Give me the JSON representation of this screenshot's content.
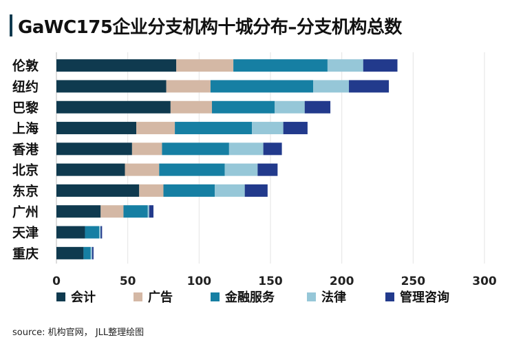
{
  "title": "GaWC175企业分支机构十城分布–分支机构总数",
  "source": "source: 机构官网， JLL整理绘图",
  "chart_data": {
    "type": "bar",
    "orientation": "horizontal",
    "stacked": true,
    "categories": [
      "伦敦",
      "纽约",
      "巴黎",
      "上海",
      "香港",
      "北京",
      "东京",
      "广州",
      "天津",
      "重庆"
    ],
    "series": [
      {
        "name": "会计",
        "color": "#0f3a4f",
        "values": [
          84,
          77,
          80,
          56,
          53,
          48,
          58,
          31,
          20,
          19
        ]
      },
      {
        "name": "广告",
        "color": "#d4b8a5",
        "values": [
          40,
          31,
          29,
          27,
          21,
          24,
          17,
          16,
          0,
          0
        ]
      },
      {
        "name": "金融服务",
        "color": "#167fa3",
        "values": [
          66,
          72,
          44,
          54,
          47,
          46,
          36,
          17,
          10,
          5
        ]
      },
      {
        "name": "法律",
        "color": "#96c7d8",
        "values": [
          25,
          25,
          21,
          22,
          24,
          23,
          21,
          1,
          1,
          1
        ]
      },
      {
        "name": "管理咨询",
        "color": "#223a8c",
        "values": [
          24,
          28,
          18,
          17,
          13,
          14,
          16,
          3,
          1,
          1
        ]
      }
    ],
    "xlim": [
      0,
      300
    ],
    "xticks": [
      "0",
      "50",
      "100",
      "150",
      "200",
      "250",
      "300"
    ],
    "grid": true,
    "legend_position": "bottom"
  }
}
